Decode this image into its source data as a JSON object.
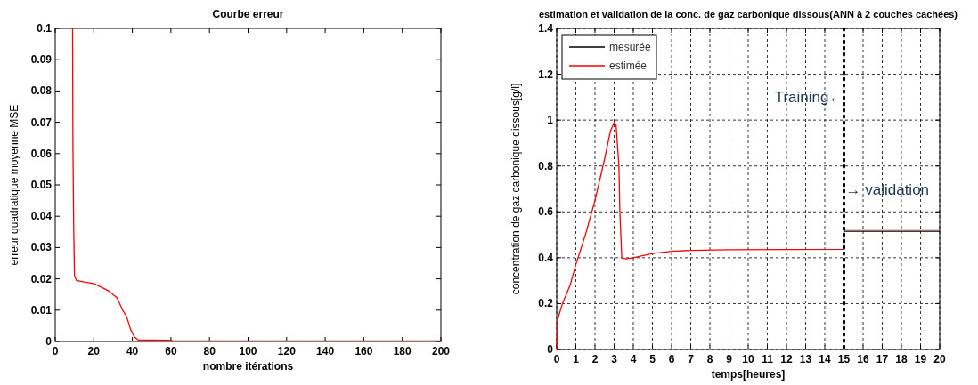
{
  "chart_data": [
    {
      "type": "line",
      "title": "Courbe erreur",
      "xlabel": "nombre itérations",
      "ylabel": "erreur quadratique moyenne MSE",
      "xlim": [
        0,
        200
      ],
      "ylim": [
        0,
        0.1
      ],
      "xticks": [
        0,
        20,
        40,
        60,
        80,
        100,
        120,
        140,
        160,
        180,
        200
      ],
      "yticks": [
        0,
        0.01,
        0.02,
        0.03,
        0.04,
        0.05,
        0.06,
        0.07,
        0.08,
        0.09,
        0.1
      ],
      "grid": false,
      "legend": false,
      "series": [
        {
          "color": "#ff0000",
          "x": [
            9,
            9.2,
            9.6,
            10,
            11,
            15,
            20,
            25,
            28,
            32,
            35,
            37,
            39,
            41,
            43,
            60,
            61,
            200
          ],
          "values": [
            0.1,
            0.062,
            0.036,
            0.021,
            0.0195,
            0.019,
            0.0185,
            0.017,
            0.016,
            0.014,
            0.01,
            0.008,
            0.004,
            0.0015,
            0.0005,
            0.0004,
            0.0002,
            0.0002
          ]
        }
      ]
    },
    {
      "type": "line",
      "title": "estimation et validation de la conc. de gaz carbonique dissous(ANN à 2 couches cachées)",
      "xlabel": "temps[heures]",
      "ylabel": "concentration de gaz carbonique dissous[g/l]",
      "xlim": [
        0,
        20
      ],
      "ylim": [
        0,
        1.4
      ],
      "xticks": [
        0,
        1,
        2,
        3,
        4,
        5,
        6,
        7,
        8,
        9,
        10,
        11,
        12,
        13,
        14,
        15,
        16,
        17,
        18,
        19,
        20
      ],
      "yticks": [
        0,
        0.2,
        0.4,
        0.6,
        0.8,
        1,
        1.2,
        1.4
      ],
      "grid": true,
      "legend": "top left",
      "annotations": [
        {
          "text": "Training←",
          "x": 15,
          "y": 1.1
        },
        {
          "text": "→ validation",
          "x": 15,
          "y": 0.7
        }
      ],
      "ref_lines": [
        {
          "axis": "x",
          "value": 15,
          "color": "#000000",
          "line_style": "dotted"
        }
      ],
      "series": [
        {
          "name": "mesurée",
          "color": "#000000",
          "x": [
            15,
            20
          ],
          "values": [
            0.515,
            0.515
          ]
        },
        {
          "name": "estimée",
          "color": "#ff0000",
          "x": [
            0,
            0.05,
            0.3,
            0.7,
            1,
            1.5,
            2,
            2.5,
            2.8,
            3,
            3.1,
            3.25,
            3.3,
            3.4,
            3.6,
            4,
            5,
            6,
            7,
            9,
            15,
            15,
            20
          ],
          "values": [
            0,
            0.13,
            0.2,
            0.28,
            0.37,
            0.5,
            0.65,
            0.83,
            0.95,
            0.99,
            0.98,
            0.8,
            0.6,
            0.4,
            0.395,
            0.4,
            0.418,
            0.428,
            0.432,
            0.435,
            0.437,
            0.525,
            0.525
          ]
        }
      ]
    }
  ]
}
